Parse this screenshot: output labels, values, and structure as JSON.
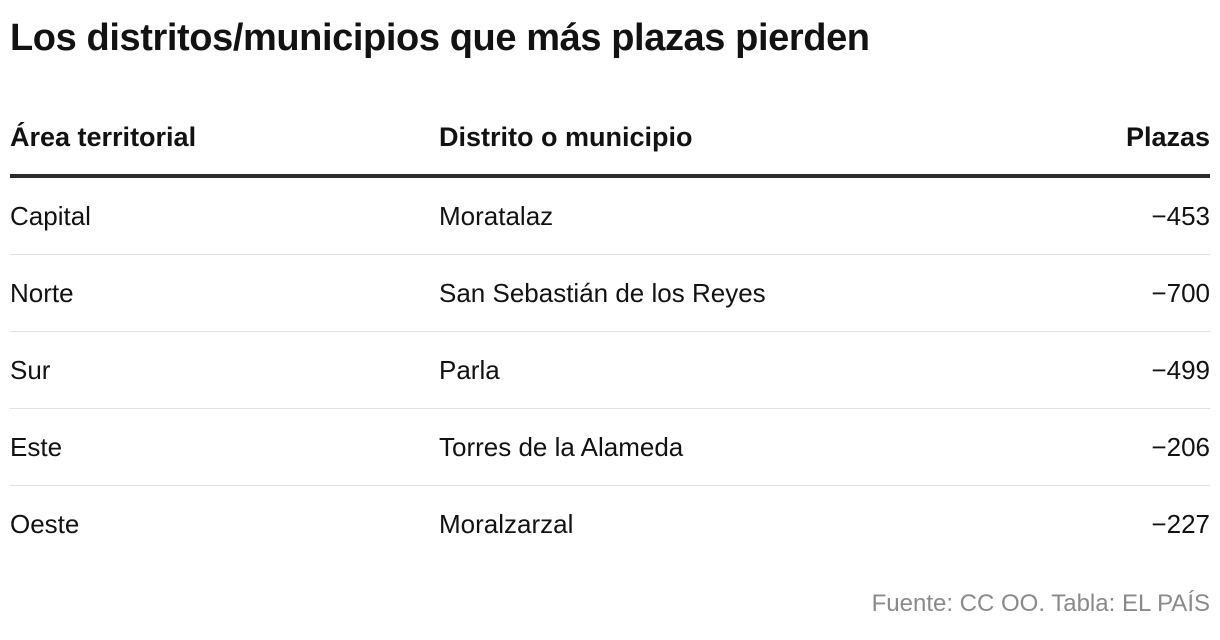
{
  "title": "Los distritos/municipios que más plazas pierden",
  "chart_data": {
    "type": "table",
    "columns": [
      "Área territorial",
      "Distrito o municipio",
      "Plazas"
    ],
    "rows": [
      {
        "area": "Capital",
        "distrito": "Moratalaz",
        "plazas": "−453"
      },
      {
        "area": "Norte",
        "distrito": "San Sebastián de los Reyes",
        "plazas": "−700"
      },
      {
        "area": "Sur",
        "distrito": "Parla",
        "plazas": "−499"
      },
      {
        "area": "Este",
        "distrito": "Torres de la Alameda",
        "plazas": "−206"
      },
      {
        "area": "Oeste",
        "distrito": "Moralzarzal",
        "plazas": "−227"
      }
    ]
  },
  "source": "Fuente: CC OO. Tabla: EL PAÍS"
}
